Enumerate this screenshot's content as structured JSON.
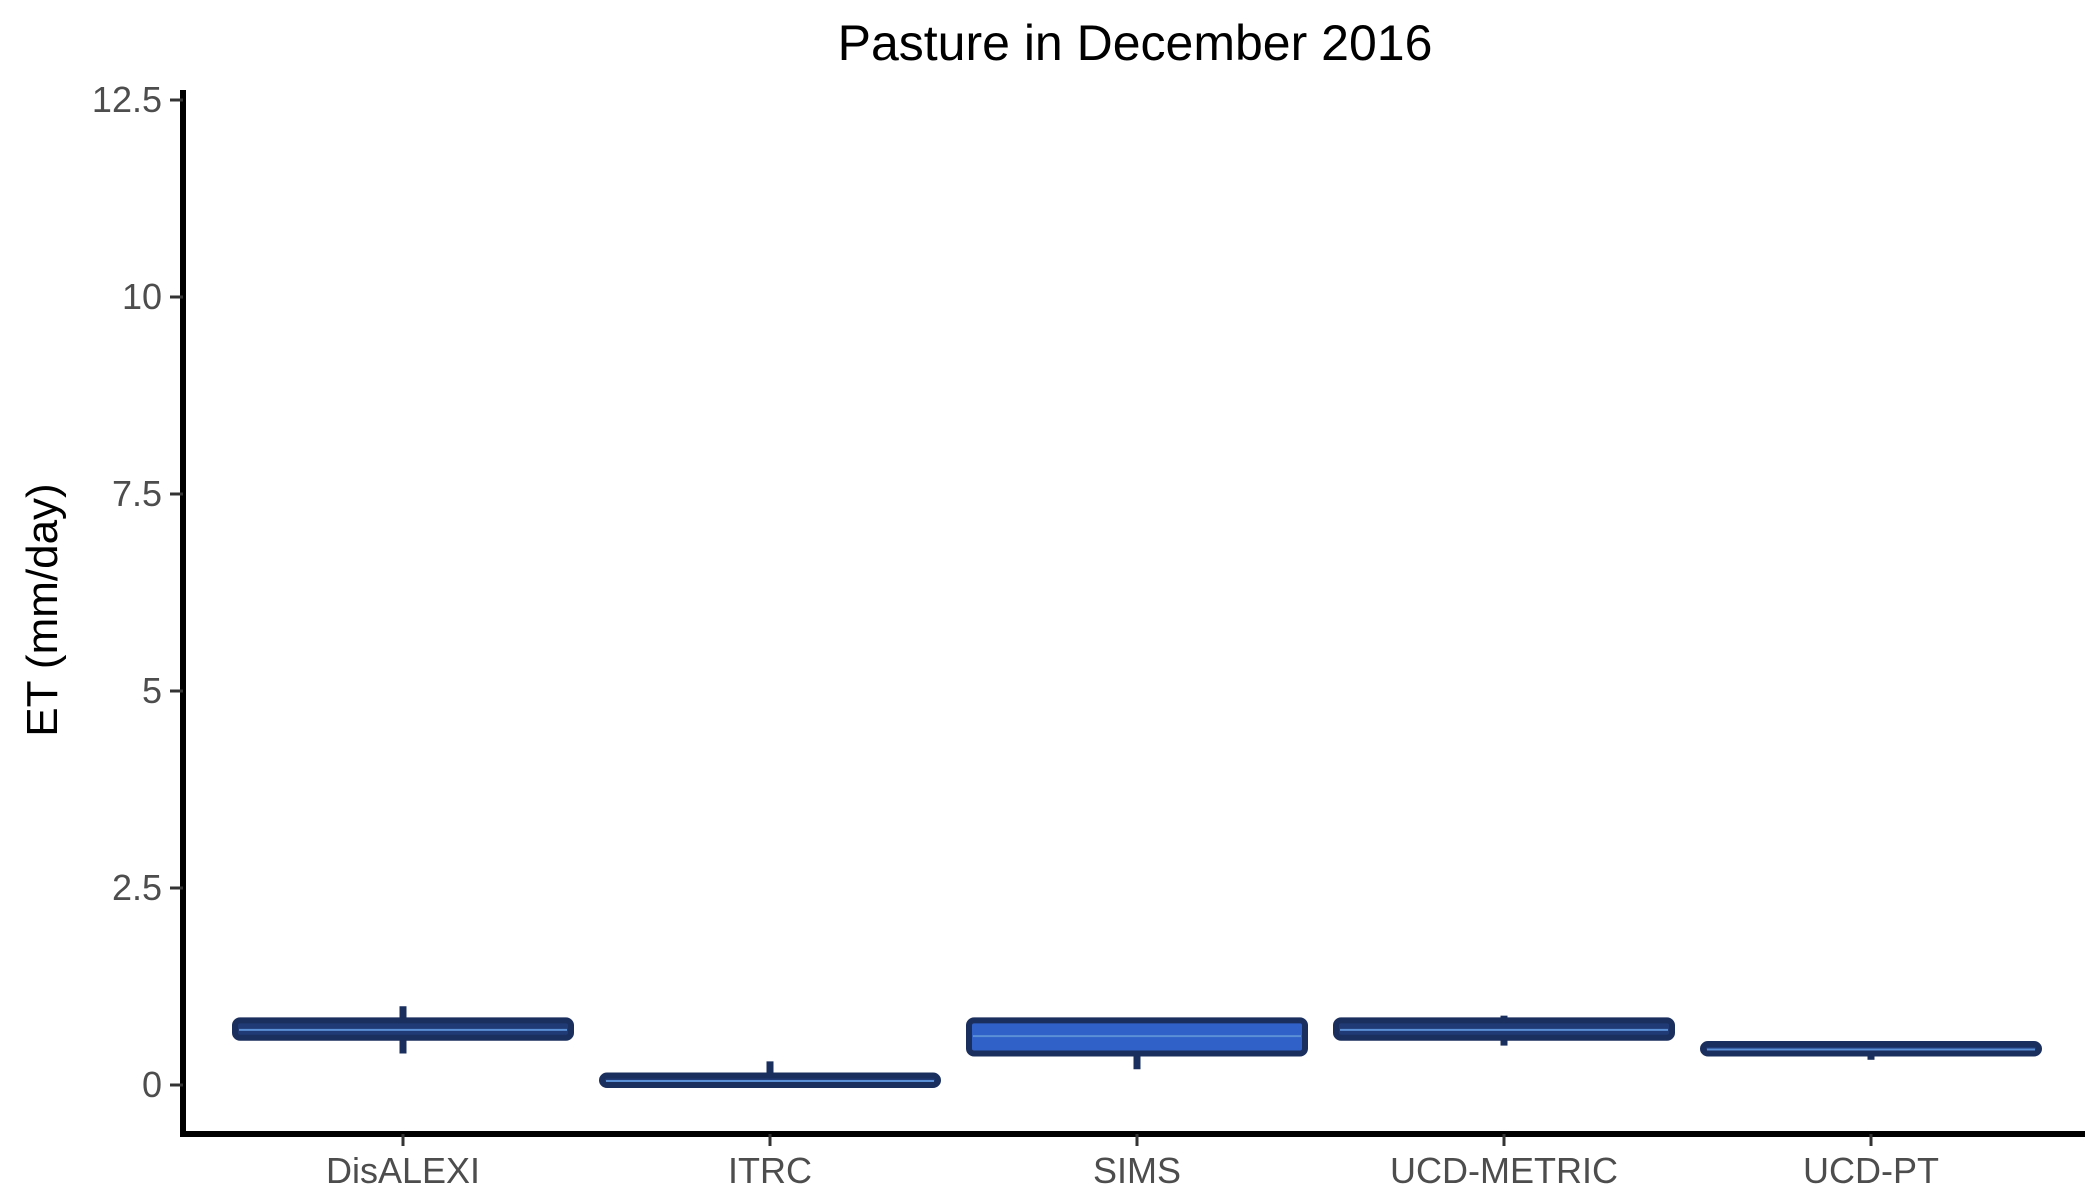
{
  "chart_data": {
    "type": "boxplot",
    "title": "Pasture in December 2016",
    "xlabel": "",
    "ylabel": "ET (mm/day)",
    "ylim": [
      -0.6,
      12.6
    ],
    "yticks": [
      0,
      2.5,
      5,
      7.5,
      10,
      12.5
    ],
    "ytick_labels": [
      "0",
      "2.5",
      "5",
      "7.5",
      "10",
      "12.5"
    ],
    "grid": false,
    "legend": "none",
    "categories": [
      "DisALEXI",
      "ITRC",
      "SIMS",
      "UCD-METRIC",
      "UCD-PT"
    ],
    "boxes": [
      {
        "category": "DisALEXI",
        "min": 0.4,
        "q1": 0.6,
        "median": 0.7,
        "q3": 0.82,
        "max": 1.0,
        "fill": "#1f3a74"
      },
      {
        "category": "ITRC",
        "min": 0.0,
        "q1": 0.0,
        "median": 0.05,
        "q3": 0.12,
        "max": 0.3,
        "fill": "#1f3a74"
      },
      {
        "category": "SIMS",
        "min": 0.2,
        "q1": 0.4,
        "median": 0.62,
        "q3": 0.82,
        "max": 0.82,
        "fill": "#2f61c8"
      },
      {
        "category": "UCD-METRIC",
        "min": 0.5,
        "q1": 0.6,
        "median": 0.7,
        "q3": 0.82,
        "max": 0.88,
        "fill": "#1f3a74"
      },
      {
        "category": "UCD-PT",
        "min": 0.32,
        "q1": 0.4,
        "median": 0.45,
        "q3": 0.52,
        "max": 0.52,
        "fill": "#1f3a74"
      }
    ],
    "colors": {
      "outline": "#1b2f5e",
      "median": "#5b8fd6",
      "axis": "#000000"
    }
  }
}
